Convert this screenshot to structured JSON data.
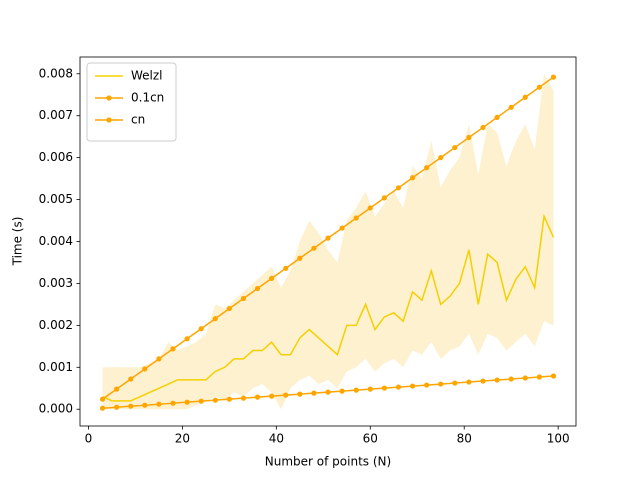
{
  "chart_data": {
    "type": "line",
    "xlabel": "Number of points (N)",
    "ylabel": "Time (s)",
    "xlim": [
      -1.8,
      103.8
    ],
    "ylim": [
      -0.0004,
      0.0084
    ],
    "xticks": [
      0,
      20,
      40,
      60,
      80,
      100
    ],
    "yticks": [
      {
        "value": 0,
        "label": "0.000"
      },
      {
        "value": 0.001,
        "label": "0.001"
      },
      {
        "value": 0.002,
        "label": "0.002"
      },
      {
        "value": 0.003,
        "label": "0.003"
      },
      {
        "value": 0.004,
        "label": "0.004"
      },
      {
        "value": 0.005,
        "label": "0.005"
      },
      {
        "value": 0.006,
        "label": "0.006"
      },
      {
        "value": 0.007,
        "label": "0.007"
      },
      {
        "value": 0.008,
        "label": "0.008"
      }
    ],
    "grid": false,
    "legend": "upper left",
    "series": [
      {
        "name": "Welzl",
        "color": "#f5d000",
        "band_color": "#fdeec4",
        "x": [
          3,
          5,
          7,
          9,
          11,
          13,
          15,
          17,
          19,
          21,
          23,
          25,
          27,
          29,
          31,
          33,
          35,
          37,
          39,
          41,
          43,
          45,
          47,
          49,
          51,
          53,
          55,
          57,
          59,
          61,
          63,
          65,
          67,
          69,
          71,
          73,
          75,
          77,
          79,
          81,
          83,
          85,
          87,
          89,
          91,
          93,
          95,
          97,
          99
        ],
        "values": [
          0.0003,
          0.0002,
          0.0002,
          0.0002,
          0.0003,
          0.0004,
          0.0005,
          0.0006,
          0.0007,
          0.0007,
          0.0007,
          0.0007,
          0.0009,
          0.001,
          0.0012,
          0.0012,
          0.0014,
          0.0014,
          0.0016,
          0.0013,
          0.0013,
          0.0017,
          0.0019,
          0.0017,
          0.0015,
          0.0013,
          0.002,
          0.002,
          0.0025,
          0.0019,
          0.0022,
          0.0023,
          0.0021,
          0.0028,
          0.0026,
          0.0033,
          0.0025,
          0.0027,
          0.003,
          0.0038,
          0.0025,
          0.0037,
          0.0035,
          0.0026,
          0.0031,
          0.0034,
          0.0029,
          0.0046,
          0.0041
        ],
        "lower": [
          0,
          0,
          0,
          0,
          0,
          0,
          0,
          0,
          0,
          0,
          0.0001,
          0.0002,
          0.0003,
          0.0002,
          0.0004,
          0.0003,
          0.0005,
          0.0006,
          0.0004,
          0,
          0.0005,
          0.0007,
          0.0008,
          0.0006,
          0.0007,
          0.0005,
          0.0009,
          0.001,
          0.0012,
          0.0009,
          0.0011,
          0.0012,
          0.001,
          0.0014,
          0.0013,
          0.0016,
          0.0012,
          0.0014,
          0.0015,
          0.0018,
          0.0013,
          0.0018,
          0.0017,
          0.0014,
          0.0016,
          0.0018,
          0.0015,
          0.0021,
          0.002
        ],
        "upper": [
          0.001,
          0.001,
          0.001,
          0.001,
          0.001,
          0.0011,
          0.0012,
          0.0016,
          0.0014,
          0.0015,
          0.0016,
          0.0018,
          0.0025,
          0.0024,
          0.0026,
          0.0028,
          0.003,
          0.0032,
          0.0034,
          0.0029,
          0.0033,
          0.004,
          0.0045,
          0.0042,
          0.0038,
          0.0035,
          0.0045,
          0.0048,
          0.0052,
          0.0046,
          0.0049,
          0.0052,
          0.0048,
          0.0058,
          0.0055,
          0.0064,
          0.0053,
          0.0057,
          0.006,
          0.0068,
          0.0056,
          0.0068,
          0.0066,
          0.0058,
          0.0064,
          0.0068,
          0.0062,
          0.008,
          0.0076
        ]
      },
      {
        "name": "0.1cn",
        "color": "#ffa500",
        "marker": true,
        "x": [
          3,
          6,
          9,
          12,
          15,
          18,
          21,
          24,
          27,
          30,
          33,
          36,
          39,
          42,
          45,
          48,
          51,
          54,
          57,
          60,
          63,
          66,
          69,
          72,
          75,
          78,
          81,
          84,
          87,
          90,
          93,
          96,
          99
        ],
        "values": [
          2.4e-05,
          4.8e-05,
          7.2e-05,
          9.6e-05,
          0.00012,
          0.000144,
          0.000168,
          0.000192,
          0.000216,
          0.00024,
          0.000264,
          0.000288,
          0.000312,
          0.000336,
          0.00036,
          0.000384,
          0.000408,
          0.000432,
          0.000456,
          0.00048,
          0.000504,
          0.000528,
          0.000552,
          0.000576,
          0.0006,
          0.000624,
          0.000648,
          0.000672,
          0.000696,
          0.00072,
          0.000744,
          0.000768,
          0.000792
        ]
      },
      {
        "name": "cn",
        "color": "#ffa500",
        "marker": true,
        "x": [
          3,
          6,
          9,
          12,
          15,
          18,
          21,
          24,
          27,
          30,
          33,
          36,
          39,
          42,
          45,
          48,
          51,
          54,
          57,
          60,
          63,
          66,
          69,
          72,
          75,
          78,
          81,
          84,
          87,
          90,
          93,
          96,
          99
        ],
        "values": [
          0.00024,
          0.00048,
          0.00072,
          0.00096,
          0.0012,
          0.00144,
          0.00168,
          0.00192,
          0.00216,
          0.0024,
          0.00264,
          0.00288,
          0.00312,
          0.00336,
          0.0036,
          0.00384,
          0.00408,
          0.00432,
          0.00456,
          0.0048,
          0.00504,
          0.00528,
          0.00552,
          0.00576,
          0.006,
          0.00624,
          0.00648,
          0.00672,
          0.00696,
          0.0072,
          0.00744,
          0.00768,
          0.00792
        ]
      }
    ]
  }
}
